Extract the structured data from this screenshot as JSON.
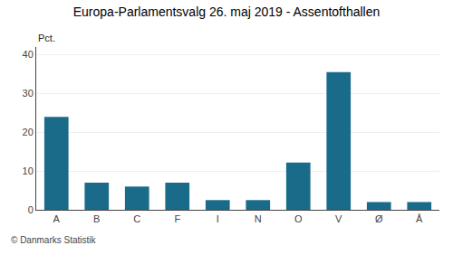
{
  "chart_data": {
    "type": "bar",
    "title": "Europa-Parlamentsvalg 26. maj 2019 - Assentofthallen",
    "categories": [
      "A",
      "B",
      "C",
      "F",
      "I",
      "N",
      "O",
      "V",
      "Ø",
      "Å"
    ],
    "values": [
      24.0,
      7.0,
      6.0,
      7.0,
      2.5,
      2.5,
      12.2,
      35.5,
      2.0,
      2.0
    ],
    "color": "#1a6b8a",
    "ylabel": "Pct.",
    "ylim": [
      0,
      42
    ],
    "yticks": [
      0,
      10,
      20,
      30,
      40
    ],
    "grid": true,
    "annotations": [
      "© Danmarks Statistik"
    ]
  }
}
